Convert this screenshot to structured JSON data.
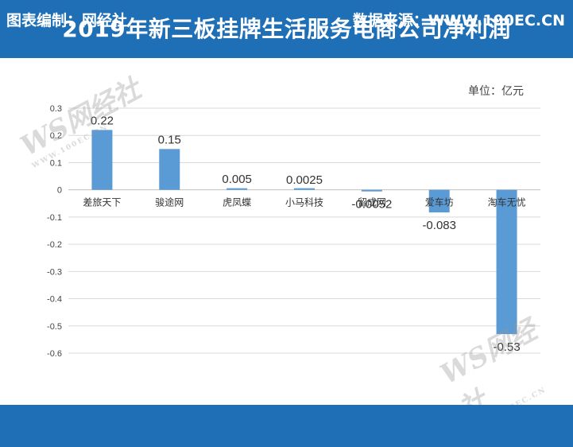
{
  "title": "2019年新三板挂牌生活服务电商公司净利润",
  "unit_label": "单位：亿元",
  "footer": {
    "left": "图表编制：网经社",
    "right": "数据来源：WWW.100EC.CN"
  },
  "watermark": {
    "logo": "WS网经社",
    "url": "WWW.100EC.CN",
    "slogan": "网络经济服务平台"
  },
  "colors": {
    "header": "#1f6fb6",
    "bar": "#5b9bd5"
  },
  "chart_data": {
    "type": "bar",
    "categories": [
      "差旅天下",
      "骏途网",
      "虎凤蝶",
      "小马科技",
      "留成网",
      "爱车坊",
      "淘车无忧"
    ],
    "values": [
      0.22,
      0.15,
      0.005,
      0.0025,
      -0.0052,
      -0.083,
      -0.53
    ],
    "data_labels": [
      "0.22",
      "0.15",
      "0.005",
      "0.0025",
      "-0.0052",
      "-0.083",
      "-0.53"
    ],
    "ylim": [
      -0.6,
      0.3
    ],
    "yticks": [
      "0.3",
      "0.2",
      "0.1",
      "0",
      "-0.1",
      "-0.2",
      "-0.3",
      "-0.4",
      "-0.5",
      "-0.6"
    ],
    "grid": true,
    "legend": "none"
  }
}
